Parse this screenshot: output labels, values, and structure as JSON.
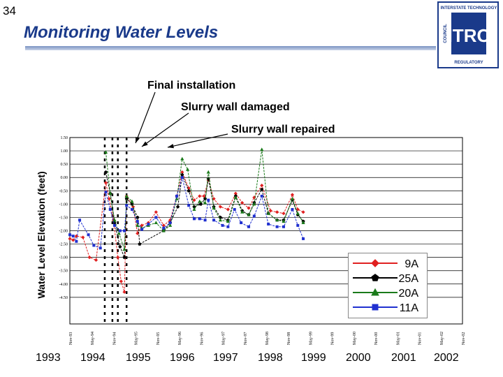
{
  "slide": {
    "number": "34",
    "title": "Monitoring Water Levels"
  },
  "logo": {
    "text": "ITRC",
    "ring_top": "INTERSTATE TECHNOLOGY",
    "ring_left": "COUNCIL",
    "ring_bottom": "REGULATORY"
  },
  "annotations": [
    "Final installation",
    "Slurry wall damaged",
    "Slurry wall repaired"
  ],
  "chart_data": {
    "type": "line",
    "ylabel": "Water Level Elevation (feet)",
    "ylim": [
      -5.5,
      1.5
    ],
    "yticks": [
      "1.50",
      "1.00",
      "0.50",
      "0.00",
      "-0.50",
      "-1.00",
      "-1.50",
      "-2.00",
      "-2.50",
      "-3.00",
      "-3.50",
      "-4.00",
      "-4.50"
    ],
    "xticks": [
      "Nov-93",
      "May-94",
      "Nov-94",
      "May-95",
      "Nov-95",
      "May-96",
      "Nov-96",
      "May-97",
      "Nov-97",
      "May-98",
      "Nov-98",
      "May-99",
      "Nov-99",
      "May-00",
      "Nov-00",
      "May-01",
      "Nov-01",
      "May-02",
      "Nov-02"
    ],
    "year_labels": [
      "1993",
      "1994",
      "1995",
      "1996",
      "1997",
      "1998",
      "1999",
      "2000",
      "2001",
      "2002"
    ],
    "grid": true,
    "legend_position": "bottom-right",
    "event_lines_x": [
      1.6,
      1.95,
      2.2,
      2.6
    ],
    "series": [
      {
        "name": "9A",
        "color": "#e02020",
        "marker": "diamond",
        "points": [
          [
            0,
            -2.3
          ],
          [
            0.15,
            -2.35
          ],
          [
            0.3,
            -2.2
          ],
          [
            0.6,
            -2.25
          ],
          [
            0.9,
            -3.0
          ],
          [
            1.2,
            -3.1
          ],
          [
            1.65,
            -0.2
          ],
          [
            1.8,
            -0.8
          ],
          [
            2.0,
            -1.6
          ],
          [
            2.2,
            -3.0
          ],
          [
            2.35,
            -3.9
          ],
          [
            2.5,
            -4.3
          ],
          [
            2.6,
            -0.7
          ],
          [
            2.9,
            -1.1
          ],
          [
            3.1,
            -2.1
          ],
          [
            3.3,
            -1.8
          ],
          [
            3.6,
            -1.7
          ],
          [
            3.95,
            -1.3
          ],
          [
            4.3,
            -1.8
          ],
          [
            4.6,
            -1.6
          ],
          [
            4.9,
            -0.7
          ],
          [
            5.15,
            0.2
          ],
          [
            5.45,
            -0.4
          ],
          [
            5.7,
            -0.85
          ],
          [
            5.95,
            -0.7
          ],
          [
            6.15,
            -0.7
          ],
          [
            6.35,
            -0.1
          ],
          [
            6.6,
            -0.8
          ],
          [
            6.9,
            -1.1
          ],
          [
            7.25,
            -1.2
          ],
          [
            7.6,
            -0.6
          ],
          [
            7.9,
            -0.95
          ],
          [
            8.2,
            -1.15
          ],
          [
            8.45,
            -0.75
          ],
          [
            8.8,
            -0.3
          ],
          [
            9.2,
            -1.25
          ],
          [
            9.5,
            -1.3
          ],
          [
            9.8,
            -1.35
          ],
          [
            10.2,
            -0.65
          ],
          [
            10.45,
            -1.2
          ],
          [
            10.7,
            -1.3
          ]
        ]
      },
      {
        "name": "25A",
        "color": "#000000",
        "marker": "pentagon",
        "points": [
          [
            1.65,
            0.2
          ],
          [
            1.85,
            -0.6
          ],
          [
            2.05,
            -1.7
          ],
          [
            2.3,
            -2.6
          ],
          [
            2.5,
            -3.0
          ],
          [
            2.6,
            -0.8
          ],
          [
            2.85,
            -1.0
          ],
          [
            3.1,
            -1.5
          ],
          [
            3.2,
            -2.5
          ],
          [
            4.3,
            -2.0
          ],
          [
            4.6,
            -1.7
          ],
          [
            4.95,
            -1.1
          ],
          [
            5.15,
            0.1
          ],
          [
            5.45,
            -0.5
          ],
          [
            5.7,
            -1.1
          ],
          [
            6.0,
            -1.0
          ],
          [
            6.2,
            -0.8
          ],
          [
            6.35,
            -0.05
          ],
          [
            6.6,
            -1.1
          ],
          [
            6.9,
            -1.5
          ],
          [
            7.25,
            -1.6
          ],
          [
            7.6,
            -0.7
          ],
          [
            7.9,
            -1.25
          ],
          [
            8.2,
            -1.4
          ],
          [
            8.45,
            -0.95
          ],
          [
            8.8,
            -0.45
          ],
          [
            9.1,
            -1.35
          ],
          [
            9.5,
            -1.6
          ],
          [
            9.8,
            -1.6
          ],
          [
            10.2,
            -0.85
          ],
          [
            10.45,
            -1.4
          ],
          [
            10.7,
            -1.65
          ]
        ]
      },
      {
        "name": "20A",
        "color": "#1a7a1a",
        "marker": "triangle",
        "points": [
          [
            1.65,
            0.95
          ],
          [
            1.85,
            -0.6
          ],
          [
            2.05,
            -1.6
          ],
          [
            2.25,
            -2.1
          ],
          [
            2.5,
            -2.7
          ],
          [
            2.6,
            -0.7
          ],
          [
            2.85,
            -0.9
          ],
          [
            3.1,
            -1.8
          ],
          [
            3.3,
            -1.9
          ],
          [
            3.6,
            -1.8
          ],
          [
            3.95,
            -1.7
          ],
          [
            4.3,
            -2.0
          ],
          [
            4.6,
            -1.8
          ],
          [
            4.9,
            -0.8
          ],
          [
            5.15,
            0.7
          ],
          [
            5.4,
            0.3
          ],
          [
            5.7,
            -1.2
          ],
          [
            5.95,
            -0.9
          ],
          [
            6.2,
            -0.95
          ],
          [
            6.35,
            0.2
          ],
          [
            6.6,
            -1.15
          ],
          [
            6.9,
            -1.6
          ],
          [
            7.25,
            -1.65
          ],
          [
            7.6,
            -0.75
          ],
          [
            7.9,
            -1.3
          ],
          [
            8.2,
            -1.4
          ],
          [
            8.45,
            -1.0
          ],
          [
            8.8,
            1.05
          ],
          [
            9.1,
            -1.35
          ],
          [
            9.5,
            -1.6
          ],
          [
            9.8,
            -1.65
          ],
          [
            10.2,
            -0.8
          ],
          [
            10.45,
            -1.35
          ],
          [
            10.7,
            -1.7
          ]
        ]
      },
      {
        "name": "11A",
        "color": "#2030d0",
        "marker": "square",
        "points": [
          [
            0,
            -2.15
          ],
          [
            0.15,
            -2.2
          ],
          [
            0.3,
            -2.4
          ],
          [
            0.45,
            -1.6
          ],
          [
            0.85,
            -2.15
          ],
          [
            1.1,
            -2.55
          ],
          [
            1.4,
            -2.65
          ],
          [
            1.65,
            -0.55
          ],
          [
            1.85,
            -1.2
          ],
          [
            2.05,
            -1.8
          ],
          [
            2.3,
            -2.0
          ],
          [
            2.5,
            -2.0
          ],
          [
            2.6,
            -1.05
          ],
          [
            2.85,
            -1.2
          ],
          [
            3.1,
            -1.65
          ],
          [
            3.3,
            -1.95
          ],
          [
            3.6,
            -1.75
          ],
          [
            3.95,
            -1.5
          ],
          [
            4.3,
            -1.9
          ],
          [
            4.6,
            -1.7
          ],
          [
            4.9,
            -0.7
          ],
          [
            5.15,
            0.0
          ],
          [
            5.45,
            -1.05
          ],
          [
            5.7,
            -1.55
          ],
          [
            5.95,
            -1.55
          ],
          [
            6.2,
            -1.6
          ],
          [
            6.35,
            -0.85
          ],
          [
            6.6,
            -1.6
          ],
          [
            7.0,
            -1.8
          ],
          [
            7.25,
            -1.85
          ],
          [
            7.55,
            -1.2
          ],
          [
            7.85,
            -1.7
          ],
          [
            8.2,
            -1.85
          ],
          [
            8.45,
            -1.45
          ],
          [
            8.8,
            -0.7
          ],
          [
            9.1,
            -1.75
          ],
          [
            9.5,
            -1.85
          ],
          [
            9.8,
            -1.85
          ],
          [
            10.2,
            -1.2
          ],
          [
            10.45,
            -1.8
          ],
          [
            10.7,
            -2.3
          ]
        ]
      }
    ]
  }
}
